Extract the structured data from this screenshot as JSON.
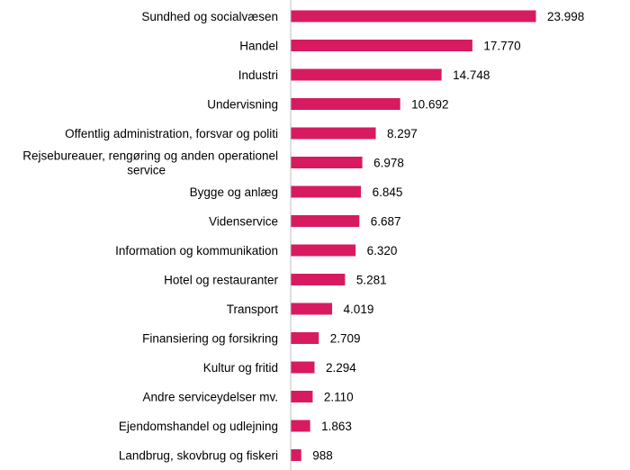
{
  "chart_data": {
    "type": "bar",
    "orientation": "horizontal",
    "title": "",
    "xlabel": "",
    "ylabel": "",
    "grid": false,
    "legend": "none",
    "bar_color": "#d81b60",
    "axis_color": "#bfbfbf",
    "categories": [
      "Sundhed og socialvæsen",
      "Handel",
      "Industri",
      "Undervisning",
      "Offentlig administration, forsvar og politi",
      "Rejsebureauer, rengøring og anden operationel service",
      "Bygge og anlæg",
      "Videnservice",
      "Information og kommunikation",
      "Hotel og restauranter",
      "Transport",
      "Finansiering og forsikring",
      "Kultur og fritid",
      "Andre serviceydelser  mv.",
      "Ejendomshandel og udlejning",
      "Landbrug, skovbrug og fiskeri"
    ],
    "category_lines": [
      [
        "Sundhed og socialvæsen"
      ],
      [
        "Handel"
      ],
      [
        "Industri"
      ],
      [
        "Undervisning"
      ],
      [
        "Offentlig administration, forsvar og politi"
      ],
      [
        "Rejsebureauer, rengøring og anden operationel",
        "service"
      ],
      [
        "Bygge og anlæg"
      ],
      [
        "Videnservice"
      ],
      [
        "Information og kommunikation"
      ],
      [
        "Hotel og restauranter"
      ],
      [
        "Transport"
      ],
      [
        "Finansiering og forsikring"
      ],
      [
        "Kultur og fritid"
      ],
      [
        "Andre serviceydelser  mv."
      ],
      [
        "Ejendomshandel og udlejning"
      ],
      [
        "Landbrug, skovbrug og fiskeri"
      ]
    ],
    "values": [
      23998,
      17770,
      14748,
      10692,
      8297,
      6978,
      6845,
      6687,
      6320,
      5281,
      4019,
      2709,
      2294,
      2110,
      1863,
      988
    ],
    "value_labels": [
      "23.998",
      "17.770",
      "14.748",
      "10.692",
      "8.297",
      "6.978",
      "6.845",
      "6.687",
      "6.320",
      "5.281",
      "4.019",
      "2.709",
      "2.294",
      "2.110",
      "1.863",
      "988"
    ]
  }
}
